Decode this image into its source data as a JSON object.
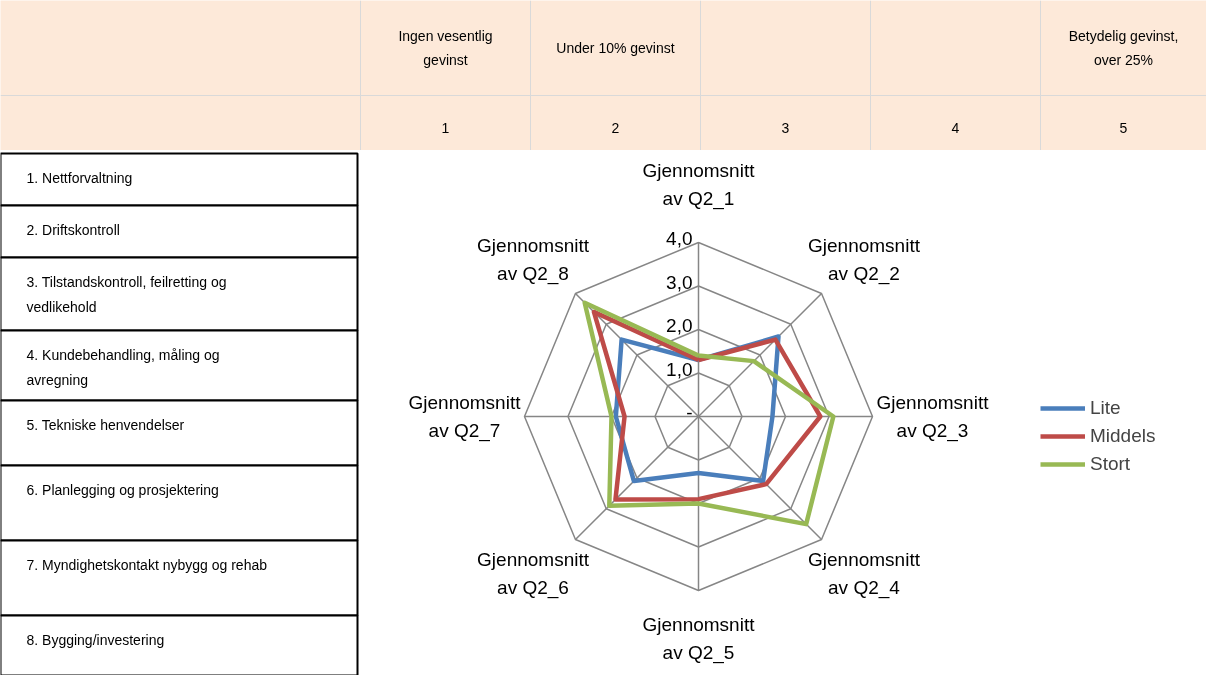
{
  "chart_data": {
    "type": "radar",
    "categories": [
      "Gjennomsnitt av Q2_1",
      "Gjennomsnitt av Q2_2",
      "Gjennomsnitt av Q2_3",
      "Gjennomsnitt av Q2_4",
      "Gjennomsnitt av Q2_5",
      "Gjennomsnitt av Q2_6",
      "Gjennomsnitt av Q2_7",
      "Gjennomsnitt av Q2_8"
    ],
    "series": [
      {
        "name": "Lite",
        "color": "#4a7ebb",
        "values": [
          1.3,
          2.6,
          1.7,
          2.1,
          1.3,
          2.1,
          1.9,
          2.5
        ]
      },
      {
        "name": "Middels",
        "color": "#be4b48",
        "values": [
          1.3,
          2.5,
          2.8,
          2.2,
          1.9,
          2.7,
          1.7,
          3.4
        ]
      },
      {
        "name": "Stort",
        "color": "#98b954",
        "values": [
          1.4,
          1.8,
          3.1,
          3.5,
          2.0,
          2.9,
          2.0,
          3.7
        ]
      }
    ],
    "ylim": [
      0,
      4
    ],
    "yticks": [
      {
        "value": 0,
        "label": "-"
      },
      {
        "value": 1,
        "label": "1,0"
      },
      {
        "value": 2,
        "label": "2,0"
      },
      {
        "value": 3,
        "label": "3,0"
      },
      {
        "value": 4,
        "label": "4,0"
      }
    ],
    "grid": true,
    "legend": "right",
    "annotations": [
      "Ingen vesentlig gevinst",
      "Under 10% gevinst",
      "Betydelig gevinst, over 25%",
      "1",
      "2",
      "3",
      "4",
      "5",
      "1. Nettforvaltning",
      "2. Driftskontroll",
      "3. Tilstandskontroll, feilretting og vedlikehold",
      "4. Kundebehandling, måling og avregning",
      "5. Tekniske henvendelser",
      "6. Planlegging og prosjektering",
      "7. Myndighetskontakt nybygg og rehab",
      "8. Bygging/investering"
    ]
  }
}
